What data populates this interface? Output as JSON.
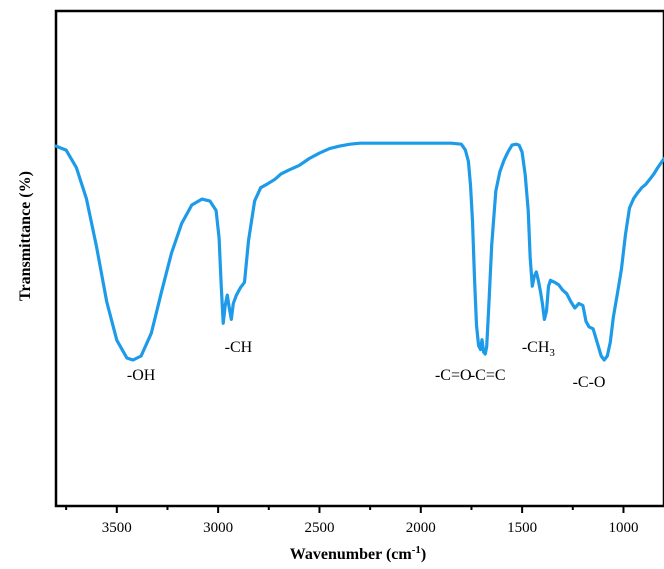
{
  "chart_data": {
    "type": "line",
    "title": "",
    "xlabel": "Wavenumber (cm",
    "xlabel_sup": "-1",
    "xlabel_close": ")",
    "ylabel": "Transmittance (%)",
    "xlim": [
      3800,
      800
    ],
    "x_reversed": true,
    "ylim": [
      0,
      100
    ],
    "y_ticks_shown": false,
    "grid": false,
    "legend": "none",
    "x_ticks": [
      3500,
      3000,
      2500,
      2000,
      1500,
      1000
    ],
    "x_tick_labels": [
      "3500",
      "3000",
      "2500",
      "2000",
      "1500",
      "1000"
    ],
    "series": [
      {
        "color": "#1e9be8",
        "points": [
          [
            3800,
            72.7
          ],
          [
            3750,
            71.9
          ],
          [
            3700,
            68.4
          ],
          [
            3650,
            62.1
          ],
          [
            3600,
            52.4
          ],
          [
            3550,
            41.3
          ],
          [
            3500,
            33.5
          ],
          [
            3450,
            29.9
          ],
          [
            3420,
            29.5
          ],
          [
            3380,
            30.3
          ],
          [
            3330,
            34.9
          ],
          [
            3280,
            43.2
          ],
          [
            3230,
            51.1
          ],
          [
            3180,
            57.1
          ],
          [
            3130,
            60.8
          ],
          [
            3080,
            62.0
          ],
          [
            3040,
            61.6
          ],
          [
            3010,
            59.7
          ],
          [
            2995,
            54.1
          ],
          [
            2985,
            44.6
          ],
          [
            2975,
            36.9
          ],
          [
            2965,
            40.5
          ],
          [
            2955,
            42.6
          ],
          [
            2945,
            40.0
          ],
          [
            2935,
            37.7
          ],
          [
            2925,
            40.9
          ],
          [
            2910,
            42.6
          ],
          [
            2890,
            44.1
          ],
          [
            2870,
            45.2
          ],
          [
            2850,
            53.6
          ],
          [
            2820,
            61.6
          ],
          [
            2790,
            64.3
          ],
          [
            2760,
            65.0
          ],
          [
            2720,
            66.0
          ],
          [
            2690,
            67.1
          ],
          [
            2650,
            67.9
          ],
          [
            2600,
            68.8
          ],
          [
            2550,
            70.2
          ],
          [
            2500,
            71.3
          ],
          [
            2450,
            72.2
          ],
          [
            2400,
            72.7
          ],
          [
            2350,
            73.1
          ],
          [
            2300,
            73.3
          ],
          [
            2250,
            73.3
          ],
          [
            2000,
            73.3
          ],
          [
            1850,
            73.3
          ],
          [
            1800,
            73.1
          ],
          [
            1780,
            71.9
          ],
          [
            1765,
            69.6
          ],
          [
            1755,
            64.8
          ],
          [
            1745,
            57.6
          ],
          [
            1735,
            46.0
          ],
          [
            1725,
            36.5
          ],
          [
            1715,
            32.4
          ],
          [
            1705,
            31.6
          ],
          [
            1698,
            33.6
          ],
          [
            1690,
            31.1
          ],
          [
            1682,
            30.7
          ],
          [
            1675,
            32.2
          ],
          [
            1665,
            40.0
          ],
          [
            1650,
            52.7
          ],
          [
            1630,
            63.6
          ],
          [
            1610,
            67.5
          ],
          [
            1590,
            69.8
          ],
          [
            1570,
            71.5
          ],
          [
            1550,
            72.9
          ],
          [
            1530,
            73.1
          ],
          [
            1515,
            72.9
          ],
          [
            1500,
            71.5
          ],
          [
            1485,
            66.9
          ],
          [
            1470,
            59.7
          ],
          [
            1460,
            50.1
          ],
          [
            1450,
            44.4
          ],
          [
            1440,
            46.4
          ],
          [
            1430,
            47.3
          ],
          [
            1420,
            45.6
          ],
          [
            1410,
            43.4
          ],
          [
            1400,
            40.9
          ],
          [
            1390,
            37.7
          ],
          [
            1380,
            39.4
          ],
          [
            1370,
            44.4
          ],
          [
            1360,
            45.6
          ],
          [
            1340,
            45.2
          ],
          [
            1320,
            44.7
          ],
          [
            1300,
            43.6
          ],
          [
            1280,
            42.9
          ],
          [
            1260,
            41.3
          ],
          [
            1240,
            40.0
          ],
          [
            1220,
            40.9
          ],
          [
            1200,
            40.5
          ],
          [
            1185,
            37.3
          ],
          [
            1170,
            36.2
          ],
          [
            1150,
            35.8
          ],
          [
            1130,
            33.1
          ],
          [
            1110,
            30.3
          ],
          [
            1095,
            29.5
          ],
          [
            1080,
            30.3
          ],
          [
            1065,
            33.1
          ],
          [
            1050,
            38.1
          ],
          [
            1030,
            42.9
          ],
          [
            1010,
            47.8
          ],
          [
            990,
            54.9
          ],
          [
            970,
            60.2
          ],
          [
            950,
            62.1
          ],
          [
            930,
            63.3
          ],
          [
            910,
            64.3
          ],
          [
            890,
            65.0
          ],
          [
            870,
            66.0
          ],
          [
            850,
            67.1
          ],
          [
            830,
            68.4
          ],
          [
            810,
            69.6
          ],
          [
            800,
            70.2
          ]
        ]
      }
    ],
    "annotations": [
      {
        "text": "-OH",
        "x": 3380,
        "y": 25.5
      },
      {
        "text": "-CH",
        "x": 2900,
        "y": 31.1
      },
      {
        "text": "-C=O",
        "x": 1840,
        "y": 25.5
      },
      {
        "text": "-C=C",
        "x": 1670,
        "y": 25.5
      },
      {
        "text": "-CH",
        "sub": "3",
        "x": 1420,
        "y": 31.1
      },
      {
        "text": "-C-O",
        "x": 1170,
        "y": 24.0
      }
    ]
  }
}
